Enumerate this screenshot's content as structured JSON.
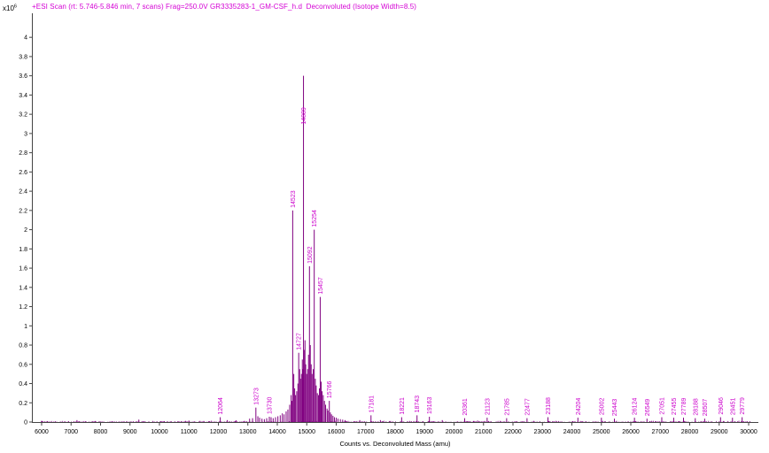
{
  "chart_data": {
    "type": "line",
    "variant": "mass-spectrum-sticks",
    "title": "+ESI Scan (rt: 5.746-5.846 min, 7 scans) Frag=250.0V GR3335283-1_GM-CSF_h.d  Deconvoluted (Isotope Width=8.5)",
    "xlabel": "Counts vs. Deconvoluted Mass (amu)",
    "y_unit_base": "x10",
    "y_unit_exp": "6",
    "intensity_units": "counts x 10^6",
    "xlim": [
      5670,
      30330
    ],
    "ylim": [
      0,
      4.25
    ],
    "x_tick_min": 6000,
    "x_tick_max": 30000,
    "x_tick_step": 1000,
    "y_tick_max": 4.0,
    "y_tick_step": 0.2,
    "grid": false,
    "legend": false,
    "colors": {
      "line": "#800080",
      "label": "#cc00cc",
      "title": "#d400d4",
      "axis": "#444444",
      "tick_text": "#000000"
    },
    "labeled_peaks": [
      {
        "mass": 12064,
        "intensity": 0.05,
        "label": "12064"
      },
      {
        "mass": 13273,
        "intensity": 0.15,
        "label": "13273"
      },
      {
        "mass": 13730,
        "intensity": 0.055,
        "label": "13730"
      },
      {
        "mass": 14523,
        "intensity": 2.2,
        "label": "14523"
      },
      {
        "mass": 14727,
        "intensity": 0.72,
        "label": "14727"
      },
      {
        "mass": 14889,
        "intensity": 3.6,
        "label": "14889",
        "label_dy": 58
      },
      {
        "mass": 15092,
        "intensity": 1.62,
        "label": "15092"
      },
      {
        "mass": 15254,
        "intensity": 2.0,
        "label": "15254"
      },
      {
        "mass": 15457,
        "intensity": 1.3,
        "label": "15457"
      },
      {
        "mass": 15766,
        "intensity": 0.22,
        "label": "15766"
      },
      {
        "mass": 17181,
        "intensity": 0.07,
        "label": "17181"
      },
      {
        "mass": 18221,
        "intensity": 0.05,
        "label": "18221"
      },
      {
        "mass": 18743,
        "intensity": 0.07,
        "label": "18743"
      },
      {
        "mass": 19163,
        "intensity": 0.055,
        "label": "19163"
      },
      {
        "mass": 20361,
        "intensity": 0.04,
        "label": "20361"
      },
      {
        "mass": 21123,
        "intensity": 0.045,
        "label": "21123"
      },
      {
        "mass": 21785,
        "intensity": 0.04,
        "label": "21785"
      },
      {
        "mass": 22477,
        "intensity": 0.04,
        "label": "22477"
      },
      {
        "mass": 23188,
        "intensity": 0.05,
        "label": "23188"
      },
      {
        "mass": 24204,
        "intensity": 0.045,
        "label": "24204"
      },
      {
        "mass": 25002,
        "intensity": 0.045,
        "label": "25002"
      },
      {
        "mass": 25443,
        "intensity": 0.035,
        "label": "25443"
      },
      {
        "mass": 26124,
        "intensity": 0.045,
        "label": "26124"
      },
      {
        "mass": 26549,
        "intensity": 0.035,
        "label": "26549"
      },
      {
        "mass": 27051,
        "intensity": 0.05,
        "label": "27051"
      },
      {
        "mass": 27455,
        "intensity": 0.045,
        "label": "27455"
      },
      {
        "mass": 27789,
        "intensity": 0.045,
        "label": "27789"
      },
      {
        "mass": 28188,
        "intensity": 0.04,
        "label": "28188"
      },
      {
        "mass": 28507,
        "intensity": 0.035,
        "label": "28507"
      },
      {
        "mass": 29046,
        "intensity": 0.05,
        "label": "29046"
      },
      {
        "mass": 29451,
        "intensity": 0.045,
        "label": "29451"
      },
      {
        "mass": 29779,
        "intensity": 0.05,
        "label": "29779"
      }
    ],
    "unlabeled_peaks": [
      [
        7200,
        0.02
      ],
      [
        9300,
        0.025
      ],
      [
        11000,
        0.015
      ],
      [
        12300,
        0.02
      ],
      [
        12600,
        0.018
      ],
      [
        13060,
        0.035
      ],
      [
        13160,
        0.04
      ],
      [
        13340,
        0.06
      ],
      [
        13400,
        0.045
      ],
      [
        13480,
        0.035
      ],
      [
        13560,
        0.03
      ],
      [
        13640,
        0.04
      ],
      [
        13790,
        0.05
      ],
      [
        13860,
        0.04
      ],
      [
        13940,
        0.05
      ],
      [
        14020,
        0.06
      ],
      [
        14100,
        0.07
      ],
      [
        14170,
        0.09
      ],
      [
        14230,
        0.08
      ],
      [
        14300,
        0.11
      ],
      [
        14360,
        0.13
      ],
      [
        14420,
        0.18
      ],
      [
        14470,
        0.28
      ],
      [
        14495,
        0.22
      ],
      [
        14560,
        0.5
      ],
      [
        14590,
        0.35
      ],
      [
        14620,
        0.28
      ],
      [
        14660,
        0.32
      ],
      [
        14700,
        0.4
      ],
      [
        14760,
        0.55
      ],
      [
        14790,
        0.45
      ],
      [
        14820,
        0.5
      ],
      [
        14850,
        0.65
      ],
      [
        14870,
        0.55
      ],
      [
        14910,
        0.75
      ],
      [
        14940,
        0.85
      ],
      [
        14965,
        0.6
      ],
      [
        15000,
        0.5
      ],
      [
        15030,
        0.55
      ],
      [
        15060,
        0.7
      ],
      [
        15120,
        0.8
      ],
      [
        15150,
        0.6
      ],
      [
        15180,
        0.5
      ],
      [
        15220,
        0.55
      ],
      [
        15290,
        0.45
      ],
      [
        15320,
        0.38
      ],
      [
        15360,
        0.3
      ],
      [
        15400,
        0.28
      ],
      [
        15430,
        0.35
      ],
      [
        15490,
        0.42
      ],
      [
        15520,
        0.32
      ],
      [
        15560,
        0.28
      ],
      [
        15600,
        0.22
      ],
      [
        15640,
        0.18
      ],
      [
        15690,
        0.14
      ],
      [
        15720,
        0.12
      ],
      [
        15800,
        0.1
      ],
      [
        15840,
        0.08
      ],
      [
        15890,
        0.065
      ],
      [
        15940,
        0.05
      ],
      [
        16000,
        0.045
      ],
      [
        16060,
        0.035
      ],
      [
        16140,
        0.03
      ],
      [
        16220,
        0.025
      ],
      [
        16300,
        0.02
      ],
      [
        16800,
        0.02
      ],
      [
        17500,
        0.02
      ],
      [
        19600,
        0.02
      ],
      [
        20800,
        0.015
      ]
    ],
    "noise": {
      "seed": 42,
      "count": 900,
      "max": 0.012
    }
  }
}
